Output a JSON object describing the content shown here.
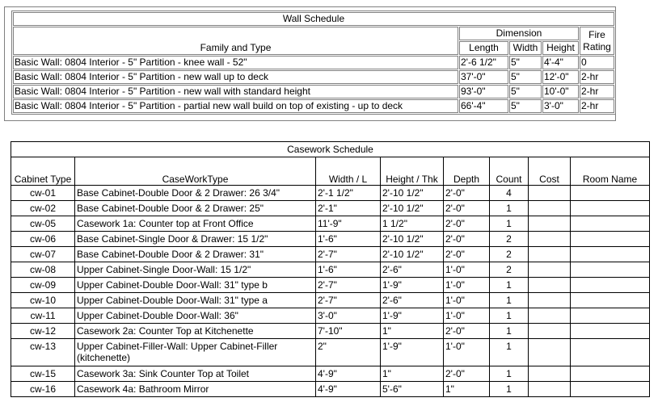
{
  "wall_schedule": {
    "title": "Wall Schedule",
    "headers": {
      "family_type": "Family and Type",
      "dimension": "Dimension",
      "length": "Length",
      "width": "Width",
      "height": "Height",
      "fire_rating": "Fire Rating"
    },
    "rows": [
      [
        "Basic Wall: 0804 Interior - 5\" Partition - knee wall - 52\"",
        "2'-6 1/2\"",
        "5\"",
        "4'-4\"",
        "0"
      ],
      [
        "Basic Wall: 0804 Interior - 5\" Partition - new wall up to deck",
        "37'-0\"",
        "5\"",
        "12'-0\"",
        "2-hr"
      ],
      [
        "Basic Wall: 0804 Interior - 5\" Partition - new wall with standard height",
        "93'-0\"",
        "5\"",
        "10'-0\"",
        "2-hr"
      ],
      [
        "Basic Wall: 0804 Interior - 5\" Partition - partial new wall build on top of existing - up to deck",
        "66'-4\"",
        "5\"",
        "3'-0\"",
        "2-hr"
      ]
    ]
  },
  "casework_schedule": {
    "title": "Casework Schedule",
    "headers": [
      "Cabinet Type",
      "CaseWorkType",
      "Width / L",
      "Height / Thk",
      "Depth",
      "Count",
      "Cost",
      "Room Name"
    ],
    "rows": [
      [
        "cw-01",
        "Base Cabinet-Double Door & 2 Drawer: 26 3/4\"",
        "2'-1 1/2\"",
        "2'-10 1/2\"",
        "2'-0\"",
        "4",
        "",
        ""
      ],
      [
        "cw-02",
        "Base Cabinet-Double Door & 2 Drawer: 25\"",
        "2'-1\"",
        "2'-10 1/2\"",
        "2'-0\"",
        "1",
        "",
        ""
      ],
      [
        "cw-05",
        "Casework 1a: Counter top at Front Office",
        "11'-9\"",
        "1 1/2\"",
        "2'-0\"",
        "1",
        "",
        ""
      ],
      [
        "cw-06",
        "Base Cabinet-Single Door & Drawer: 15 1/2\"",
        "1'-6\"",
        "2'-10 1/2\"",
        "2'-0\"",
        "2",
        "",
        ""
      ],
      [
        "cw-07",
        "Base Cabinet-Double Door & 2 Drawer: 31\"",
        "2'-7\"",
        "2'-10 1/2\"",
        "2'-0\"",
        "2",
        "",
        ""
      ],
      [
        "cw-08",
        "Upper Cabinet-Single Door-Wall: 15 1/2\"",
        "1'-6\"",
        "2'-6\"",
        "1'-0\"",
        "2",
        "",
        ""
      ],
      [
        "cw-09",
        "Upper Cabinet-Double Door-Wall: 31\" type b",
        "2'-7\"",
        "1'-9\"",
        "1'-0\"",
        "1",
        "",
        ""
      ],
      [
        "cw-10",
        "Upper Cabinet-Double Door-Wall: 31\" type a",
        "2'-7\"",
        "2'-6\"",
        "1'-0\"",
        "1",
        "",
        ""
      ],
      [
        "cw-11",
        "Upper Cabinet-Double Door-Wall: 36\"",
        "3'-0\"",
        "1'-9\"",
        "1'-0\"",
        "1",
        "",
        ""
      ],
      [
        "cw-12",
        "Casework 2a: Counter Top at Kitchenette",
        "7'-10\"",
        "1\"",
        "2'-0\"",
        "1",
        "",
        ""
      ],
      [
        "cw-13",
        "Upper Cabinet-Filler-Wall: Upper Cabinet-Filler (kitchenette)",
        "2\"",
        "1'-9\"",
        "1'-0\"",
        "1",
        "",
        ""
      ],
      [
        "cw-15",
        "Casework 3a: Sink Counter Top at Toilet",
        "4'-9\"",
        "1\"",
        "2'-0\"",
        "1",
        "",
        ""
      ],
      [
        "cw-16",
        "Casework 4a: Bathroom Mirror",
        "4'-9\"",
        "5'-6\"",
        "1\"",
        "1",
        "",
        ""
      ]
    ]
  }
}
